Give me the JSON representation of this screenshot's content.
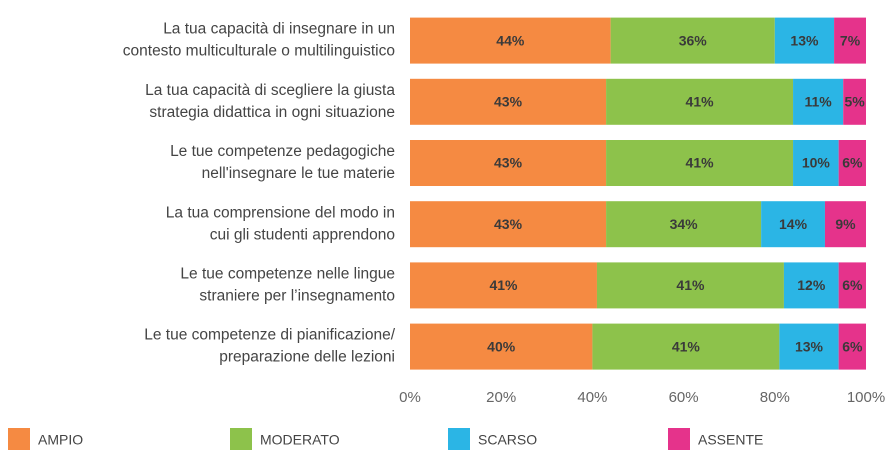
{
  "chart_data": {
    "type": "stacked_bar_horizontal",
    "categories": [
      [
        "La tua capacità di insegnare in un",
        "contesto multiculturale o multilinguistico"
      ],
      [
        "La tua capacità di scegliere la giusta",
        "strategia didattica in ogni situazione"
      ],
      [
        "Le tue competenze pedagogiche",
        "nell'insegnare le tue materie"
      ],
      [
        "La tua comprensione del modo in",
        "cui gli studenti apprendono"
      ],
      [
        "Le tue competenze nelle lingue",
        "straniere per l’insegnamento"
      ],
      [
        "Le tue competenze di pianificazione/",
        "preparazione delle lezioni"
      ]
    ],
    "series": [
      {
        "name": "AMPIO",
        "color": "#f58a42",
        "values": [
          44,
          43,
          43,
          43,
          41,
          40
        ],
        "value_labels": [
          "44%",
          "43%",
          "43%",
          "43%",
          "41%",
          "40%"
        ]
      },
      {
        "name": "MODERATO",
        "color": "#8dc24b",
        "values": [
          36,
          41,
          41,
          34,
          41,
          41
        ],
        "value_labels": [
          "36%",
          "41%",
          "41%",
          "34%",
          "41%",
          "41%"
        ]
      },
      {
        "name": "SCARSO",
        "color": "#2bb5e5",
        "values": [
          13,
          11,
          10,
          14,
          12,
          13
        ],
        "value_labels": [
          "13%",
          "11%",
          "10%",
          "14%",
          "12%",
          "13%"
        ]
      },
      {
        "name": "ASSENTE",
        "color": "#e5338b",
        "values": [
          7,
          5,
          6,
          9,
          6,
          6
        ],
        "value_labels": [
          "7%",
          "5%",
          "6%",
          "9%",
          "6%",
          "6%"
        ]
      }
    ],
    "xlim": [
      0,
      100
    ],
    "xticks": [
      {
        "value": 0,
        "label": "0%"
      },
      {
        "value": 20,
        "label": "20%"
      },
      {
        "value": 40,
        "label": "40%"
      },
      {
        "value": 60,
        "label": "60%"
      },
      {
        "value": 80,
        "label": "80%"
      },
      {
        "value": 100,
        "label": "100%"
      }
    ],
    "legend": "bottom"
  }
}
